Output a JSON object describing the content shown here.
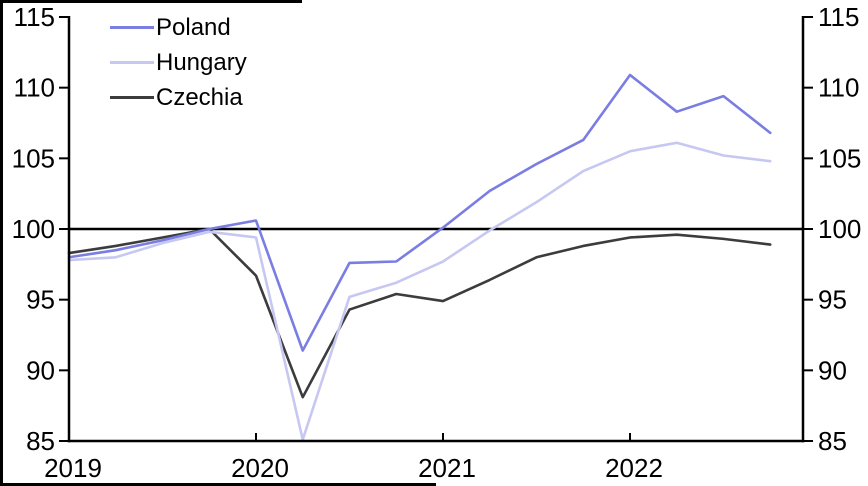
{
  "figure": {
    "background": "#ffffff",
    "border_color": "#000000",
    "axis_color": "#000000",
    "text_color": "#000000"
  },
  "chart_data": {
    "type": "line",
    "title": "",
    "xlabel": "",
    "ylabel": "",
    "categories": [
      "2019 Q1",
      "2019 Q2",
      "2019 Q3",
      "2019 Q4",
      "2020 Q1",
      "2020 Q2",
      "2020 Q3",
      "2020 Q4",
      "2021 Q1",
      "2021 Q2",
      "2021 Q3",
      "2021 Q4",
      "2022 Q1",
      "2022 Q2",
      "2022 Q3",
      "2022 Q4"
    ],
    "series": [
      {
        "name": "Poland",
        "color": "#7a7de2",
        "values": [
          98.0,
          98.5,
          99.2,
          100.0,
          100.6,
          91.4,
          97.6,
          97.7,
          100.1,
          102.7,
          104.6,
          106.3,
          110.9,
          108.3,
          109.4,
          106.8
        ]
      },
      {
        "name": "Hungary",
        "color": "#c7c8f1",
        "values": [
          97.8,
          98.0,
          99.0,
          99.8,
          99.4,
          85.1,
          95.2,
          96.2,
          97.7,
          99.9,
          101.9,
          104.1,
          105.5,
          106.1,
          105.2,
          104.8
        ]
      },
      {
        "name": "Czechia",
        "color": "#3c3c3c",
        "values": [
          98.3,
          98.8,
          99.4,
          100.0,
          96.7,
          88.1,
          94.3,
          95.4,
          94.9,
          96.4,
          98.0,
          98.8,
          99.4,
          99.6,
          99.3,
          98.9
        ]
      }
    ],
    "ylim": [
      85,
      115
    ],
    "yticks": [
      85,
      90,
      95,
      100,
      105,
      110,
      115
    ],
    "ytick_labels_left": [
      "85",
      "90",
      "95",
      "100",
      "105",
      "110",
      "115"
    ],
    "ytick_labels_right": [
      "85",
      "90",
      "95",
      "100",
      "105",
      "110",
      "115"
    ],
    "xtick_labels": [
      "2019",
      "2020",
      "2021",
      "2022"
    ],
    "xtick_indices": [
      0,
      4,
      8,
      12
    ],
    "baseline": 100,
    "grid": false,
    "legend_position": "top-left"
  }
}
